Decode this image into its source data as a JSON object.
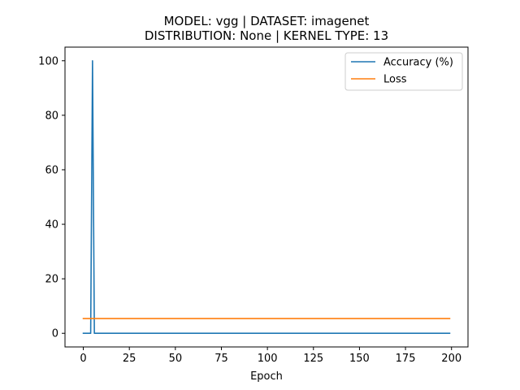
{
  "chart_data": {
    "type": "line",
    "title_lines": [
      "MODEL: vgg | DATASET: imagenet",
      "DISTRIBUTION: None | KERNEL TYPE: 13"
    ],
    "xlabel": "Epoch",
    "ylabel": "",
    "xlim": [
      -9.95,
      208.95
    ],
    "ylim": [
      -5.0,
      105.0
    ],
    "xticks": [
      0,
      25,
      50,
      75,
      100,
      125,
      150,
      175,
      200
    ],
    "yticks": [
      0,
      20,
      40,
      60,
      80,
      100
    ],
    "grid": false,
    "legend_position": "top-right",
    "series": [
      {
        "name": "Accuracy (%)",
        "color": "#1f77b4",
        "points": [
          [
            0,
            0
          ],
          [
            4,
            0
          ],
          [
            5,
            100
          ],
          [
            6,
            0
          ],
          [
            199,
            0
          ]
        ]
      },
      {
        "name": "Loss",
        "color": "#ff7f0e",
        "points": [
          [
            0,
            5.4
          ],
          [
            199,
            5.4
          ]
        ]
      }
    ]
  }
}
